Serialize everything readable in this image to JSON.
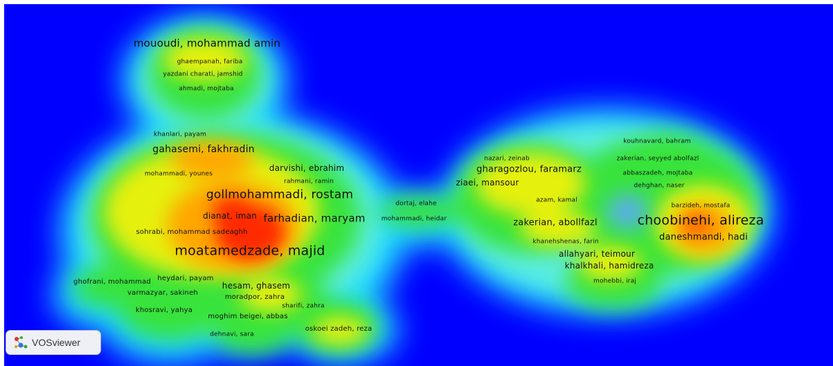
{
  "app": {
    "logo_text": "VOSviewer"
  },
  "colors": {
    "background": "#0000ff",
    "low": "#00ffff",
    "mid": "#ffff00",
    "high": "#ff0000"
  },
  "labels": [
    {
      "text": "mououdi, mohammad amin",
      "size": "s13"
    },
    {
      "text": "ghaempanah, fariba",
      "size": "s7"
    },
    {
      "text": "yazdani charati, jamshid",
      "size": "s7"
    },
    {
      "text": "ahmadi, mojtaba",
      "size": "s7"
    },
    {
      "text": "khanlari, payam",
      "size": "s7"
    },
    {
      "text": "gahasemi, fakhradin",
      "size": "s12"
    },
    {
      "text": "darvishi, ebrahim",
      "size": "s10"
    },
    {
      "text": "mohammadi, younes",
      "size": "s7"
    },
    {
      "text": "rahmani, ramin",
      "size": "s7"
    },
    {
      "text": "gollmohammadi, rostam",
      "size": "s15"
    },
    {
      "text": "dianat, iman",
      "size": "s10"
    },
    {
      "text": "farhadian, maryam",
      "size": "s13"
    },
    {
      "text": "sohrabi, mohammad sadeaghh",
      "size": "s8"
    },
    {
      "text": "moatamedzade, majid",
      "size": "s16"
    },
    {
      "text": "ghofrani, mohammad",
      "size": "s8"
    },
    {
      "text": "heydari, payam",
      "size": "s8"
    },
    {
      "text": "hesam, ghasem",
      "size": "s10"
    },
    {
      "text": "varmazyar, sakineh",
      "size": "s8"
    },
    {
      "text": "moradpor, zahra",
      "size": "s8"
    },
    {
      "text": "khosravi, yahya",
      "size": "s8"
    },
    {
      "text": "moghim beigei, abbas",
      "size": "s8"
    },
    {
      "text": "sharifi, zahra",
      "size": "s7"
    },
    {
      "text": "oskoei zadeh, reza",
      "size": "s8"
    },
    {
      "text": "dehnavi, sara",
      "size": "s7"
    },
    {
      "text": "dortaj, elahe",
      "size": "s7"
    },
    {
      "text": "mohammadi, heidar",
      "size": "s7"
    },
    {
      "text": "nazari, zeinab",
      "size": "s7"
    },
    {
      "text": "gharagozlou, faramarz",
      "size": "s11"
    },
    {
      "text": "ziaei, mansour",
      "size": "s10"
    },
    {
      "text": "kouhnavard, bahram",
      "size": "s7"
    },
    {
      "text": "zakerian, seyyed abolfazl",
      "size": "s7"
    },
    {
      "text": "abbaszadeh, mojtaba",
      "size": "s7"
    },
    {
      "text": "dehghan, naser",
      "size": "s7"
    },
    {
      "text": "azam, kamal",
      "size": "s7"
    },
    {
      "text": "barzideh, mostafa",
      "size": "s7"
    },
    {
      "text": "zakerian, abollfazl",
      "size": "s11"
    },
    {
      "text": "choobinehi, alireza",
      "size": "s16"
    },
    {
      "text": "daneshmandi, hadi",
      "size": "s11"
    },
    {
      "text": "khanehshenas, farin",
      "size": "s7"
    },
    {
      "text": "allahyari, teimour",
      "size": "s10"
    },
    {
      "text": "khalkhali, hamidreza",
      "size": "s10"
    },
    {
      "text": "mohebbi, iraj",
      "size": "s7"
    }
  ]
}
